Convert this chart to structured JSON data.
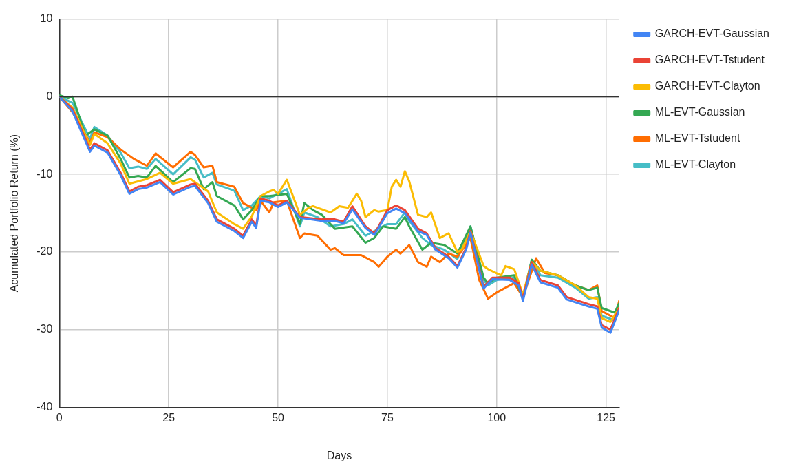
{
  "chart_data": {
    "type": "line",
    "xlabel": "Days",
    "ylabel": "Acumulated Portfolio Return (%)",
    "xlim": [
      0,
      128
    ],
    "xticks": [
      0,
      25,
      50,
      75,
      100,
      125
    ],
    "ylim": [
      -40,
      10
    ],
    "yticks": [
      -40,
      -30,
      -20,
      -10,
      0,
      10
    ],
    "grid": true,
    "legend": "right",
    "marker": "none",
    "line_style": "solid",
    "ref_lines": [
      {
        "axis": "y",
        "value": 0,
        "color": "#333333"
      }
    ],
    "series": [
      {
        "name": "GARCH-EVT-Gaussian",
        "color": "#4285f4",
        "x": [
          0,
          3,
          7,
          8,
          11,
          14,
          16,
          18,
          20,
          23,
          26,
          30,
          31,
          34,
          36,
          40,
          42,
          44,
          45,
          46,
          48,
          50,
          52,
          55,
          60,
          63,
          65,
          67,
          70,
          72,
          73,
          75,
          77,
          79,
          82,
          84,
          86,
          89,
          91,
          93,
          94,
          97,
          99,
          103,
          105,
          106,
          108,
          110,
          114,
          116,
          121,
          123,
          124,
          126,
          128
        ],
        "values": [
          0,
          -1.9,
          -7.1,
          -6.3,
          -7.2,
          -10.1,
          -12.5,
          -11.9,
          -11.7,
          -11,
          -12.6,
          -11.6,
          -11.5,
          -13.7,
          -16.1,
          -17.3,
          -18.2,
          -16.1,
          -16.9,
          -13.4,
          -13.6,
          -14.2,
          -13.6,
          -15.6,
          -16,
          -16,
          -16.3,
          -14.5,
          -16.9,
          -17.8,
          -16.9,
          -15,
          -14.4,
          -15,
          -17.3,
          -17.8,
          -19.7,
          -20.8,
          -22,
          -19.7,
          -17.5,
          -24.7,
          -23.5,
          -23.6,
          -24.3,
          -26.3,
          -21.6,
          -23.9,
          -24.6,
          -26.1,
          -27,
          -27.3,
          -29.7,
          -30.4,
          -27.5
        ]
      },
      {
        "name": "GARCH-EVT-Tstudent",
        "color": "#ea4335",
        "x": [
          0,
          3,
          7,
          8,
          11,
          14,
          16,
          18,
          20,
          23,
          26,
          30,
          31,
          34,
          36,
          40,
          42,
          44,
          45,
          46,
          48,
          50,
          52,
          55,
          60,
          63,
          65,
          67,
          70,
          72,
          73,
          75,
          77,
          79,
          82,
          84,
          86,
          89,
          91,
          93,
          94,
          97,
          99,
          103,
          105,
          106,
          108,
          110,
          114,
          116,
          121,
          123,
          124,
          126,
          128
        ],
        "values": [
          0,
          -1.6,
          -6.8,
          -6,
          -6.9,
          -9.8,
          -12.2,
          -11.6,
          -11.4,
          -10.7,
          -12.3,
          -11.3,
          -11.2,
          -13.4,
          -15.8,
          -17,
          -17.9,
          -15.8,
          -16.6,
          -13.1,
          -13.4,
          -14,
          -13.4,
          -15.5,
          -15.8,
          -15.8,
          -16.1,
          -14.1,
          -16.7,
          -17.6,
          -16.7,
          -14.6,
          -14,
          -14.6,
          -17,
          -17.6,
          -19.5,
          -20.6,
          -21.8,
          -19.5,
          -17.3,
          -24.5,
          -23.3,
          -23.3,
          -24,
          -26,
          -21.3,
          -23.6,
          -24.3,
          -25.8,
          -26.7,
          -27,
          -29.4,
          -30,
          -27.2
        ]
      },
      {
        "name": "GARCH-EVT-Clayton",
        "color": "#fbbc04",
        "x": [
          0,
          3,
          7,
          8,
          11,
          14,
          16,
          20,
          23,
          26,
          30,
          34,
          36,
          40,
          42,
          44,
          46,
          48,
          49,
          50,
          52,
          55,
          57,
          58,
          62,
          64,
          66,
          68,
          69,
          70,
          72,
          73,
          75,
          76,
          77,
          78,
          79,
          80,
          82,
          84,
          85,
          87,
          89,
          91,
          92,
          94,
          97,
          98,
          101,
          102,
          104,
          106,
          108,
          110,
          114,
          118,
          121,
          123,
          124,
          126,
          128
        ],
        "values": [
          0,
          -1.4,
          -6.2,
          -4.8,
          -6,
          -8.6,
          -11.2,
          -10.6,
          -9.8,
          -11.2,
          -10.6,
          -12.2,
          -14.9,
          -16.4,
          -17,
          -15.4,
          -12.8,
          -12.2,
          -12,
          -12.5,
          -10.7,
          -15.2,
          -14.3,
          -14.1,
          -14.9,
          -14.1,
          -14.3,
          -12.5,
          -13.4,
          -15.5,
          -14.6,
          -14.8,
          -14.6,
          -11.6,
          -10.7,
          -11.6,
          -9.6,
          -10.9,
          -15.2,
          -15.5,
          -14.9,
          -18.2,
          -17.6,
          -20,
          -19.7,
          -17.3,
          -21.8,
          -22.2,
          -23,
          -21.8,
          -22.2,
          -25.5,
          -21.3,
          -22.4,
          -23,
          -24.3,
          -25.8,
          -26,
          -28.5,
          -29,
          -27.2
        ]
      },
      {
        "name": "ML-EVT-Gaussian",
        "color": "#34a853",
        "x": [
          0,
          2,
          3,
          6,
          8,
          11,
          14,
          16,
          18,
          20,
          22,
          26,
          30,
          31,
          33,
          35,
          36,
          40,
          42,
          44,
          46,
          48,
          52,
          55,
          56,
          58,
          60,
          63,
          67,
          70,
          72,
          74,
          77,
          79,
          80,
          83,
          85,
          88,
          91,
          94,
          97,
          98,
          100,
          104,
          106,
          108,
          110,
          114,
          118,
          121,
          123,
          124,
          127,
          128
        ],
        "values": [
          0.2,
          -0.2,
          0,
          -5,
          -4.2,
          -5,
          -8,
          -10.4,
          -10.2,
          -10.4,
          -8.9,
          -11,
          -9.2,
          -9.3,
          -11.9,
          -11,
          -12.8,
          -14,
          -15.8,
          -14.6,
          -12.8,
          -12.8,
          -12.5,
          -16.4,
          -13.7,
          -14.6,
          -15.2,
          -17,
          -16.7,
          -18.8,
          -18.2,
          -16.7,
          -17,
          -15.5,
          -16.7,
          -19.7,
          -18.8,
          -19.1,
          -20.2,
          -16.7,
          -23.3,
          -24,
          -23.3,
          -23,
          -26,
          -21,
          -22.4,
          -23,
          -24.3,
          -24.9,
          -24.6,
          -27.2,
          -27.8,
          -26.6
        ]
      },
      {
        "name": "ML-EVT-Tstudent",
        "color": "#ff6d01",
        "x": [
          0,
          3,
          7,
          8,
          11,
          14,
          17,
          20,
          22,
          26,
          30,
          31,
          33,
          35,
          36,
          40,
          42,
          45,
          46,
          48,
          49,
          52,
          55,
          56,
          59,
          62,
          63,
          65,
          69,
          72,
          73,
          75,
          77,
          78,
          80,
          82,
          84,
          85,
          87,
          89,
          91,
          94,
          96,
          98,
          100,
          104,
          106,
          109,
          111,
          114,
          118,
          121,
          123,
          124,
          127,
          128
        ],
        "values": [
          0,
          -2,
          -5.9,
          -4.6,
          -5.2,
          -6.8,
          -8,
          -8.9,
          -7.3,
          -9.1,
          -7.1,
          -7.5,
          -9.1,
          -8.9,
          -11,
          -11.6,
          -13.7,
          -14.6,
          -13.4,
          -14.9,
          -13.6,
          -13.4,
          -18.2,
          -17.6,
          -17.9,
          -19.7,
          -19.5,
          -20.4,
          -20.4,
          -21.3,
          -21.9,
          -20.6,
          -19.7,
          -20.2,
          -19.1,
          -21.3,
          -21.9,
          -20.6,
          -21.3,
          -20.2,
          -20.6,
          -18.2,
          -23.6,
          -26,
          -25.2,
          -24,
          -25.8,
          -20.8,
          -22.7,
          -23,
          -24.3,
          -24.9,
          -24.3,
          -27.6,
          -28.5,
          -26.3
        ]
      },
      {
        "name": "ML-EVT-Clayton",
        "color": "#46bdc6",
        "x": [
          0,
          3,
          7,
          8,
          11,
          14,
          16,
          18,
          20,
          22,
          26,
          30,
          31,
          33,
          35,
          36,
          40,
          42,
          44,
          46,
          48,
          52,
          55,
          56,
          59,
          62,
          65,
          67,
          70,
          72,
          74,
          75,
          77,
          79,
          80,
          83,
          85,
          88,
          91,
          94,
          97,
          98,
          100,
          104,
          106,
          108,
          110,
          114,
          118,
          121,
          123,
          124,
          127,
          128
        ],
        "values": [
          0,
          -0.8,
          -5.4,
          -3.9,
          -5,
          -7.2,
          -9.2,
          -9,
          -9.3,
          -8,
          -10,
          -7.8,
          -8.1,
          -10.4,
          -9.8,
          -11.3,
          -12.1,
          -14.6,
          -14,
          -12.8,
          -13.1,
          -11.9,
          -16.7,
          -14.9,
          -15.5,
          -16.7,
          -16.4,
          -15.8,
          -17.9,
          -17.3,
          -16.7,
          -16.4,
          -16.4,
          -14.9,
          -16,
          -18.2,
          -19.1,
          -19.7,
          -20.9,
          -16.7,
          -23.6,
          -24.3,
          -23.6,
          -23.3,
          -25.8,
          -21,
          -23,
          -23.3,
          -24.6,
          -26,
          -25.8,
          -28.2,
          -28.8,
          -27
        ]
      }
    ]
  }
}
